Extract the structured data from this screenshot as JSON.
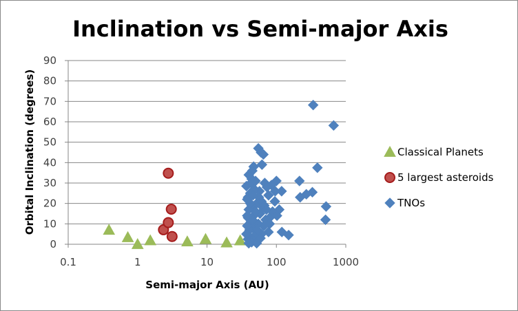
{
  "chart_data": {
    "type": "scatter",
    "title": "Inclination vs Semi-major Axis",
    "xlabel": "Semi-major Axis (AU)",
    "ylabel": "Orbital Inclination (degrees)",
    "xscale": "log",
    "xlim": [
      0.1,
      1000
    ],
    "ylim": [
      0,
      90
    ],
    "x_ticks": [
      "0.1",
      "1",
      "10",
      "100",
      "1000"
    ],
    "y_ticks": [
      "0",
      "10",
      "20",
      "30",
      "40",
      "50",
      "60",
      "70",
      "80",
      "90"
    ],
    "grid": "horizontal",
    "legend_position": "right",
    "series": [
      {
        "name": "Classical Planets",
        "marker": "triangle",
        "color": "#9BBB59",
        "points": [
          [
            0.387,
            7.0
          ],
          [
            0.723,
            3.4
          ],
          [
            1.0,
            0.0
          ],
          [
            1.524,
            1.85
          ],
          [
            5.2,
            1.3
          ],
          [
            9.54,
            2.5
          ],
          [
            19.2,
            0.8
          ],
          [
            30.1,
            1.8
          ]
        ]
      },
      {
        "name": "5 largest asteroids",
        "marker": "circle",
        "color": "#C0504D",
        "points": [
          [
            2.77,
            34.8
          ],
          [
            2.36,
            7.1
          ],
          [
            2.77,
            10.6
          ],
          [
            3.14,
            3.8
          ],
          [
            3.06,
            17.2
          ]
        ]
      },
      {
        "name": "TNOs",
        "marker": "diamond",
        "color": "#4F81BD",
        "points": [
          [
            339,
            68.2
          ],
          [
            668,
            58.2
          ],
          [
            55,
            47
          ],
          [
            60,
            45
          ],
          [
            65,
            44
          ],
          [
            62,
            39
          ],
          [
            47,
            38
          ],
          [
            45,
            36
          ],
          [
            40,
            34
          ],
          [
            390,
            37.5
          ],
          [
            215,
            31
          ],
          [
            100,
            31
          ],
          [
            85,
            29
          ],
          [
            68,
            30
          ],
          [
            50,
            31
          ],
          [
            44,
            32
          ],
          [
            37,
            28.5
          ],
          [
            73,
            28
          ],
          [
            119,
            26
          ],
          [
            330,
            25.5
          ],
          [
            270,
            24.5
          ],
          [
            220,
            23
          ],
          [
            96,
            26
          ],
          [
            77,
            24
          ],
          [
            57,
            26
          ],
          [
            42,
            25
          ],
          [
            39,
            23
          ],
          [
            95,
            21
          ],
          [
            520,
            18.5
          ],
          [
            110,
            17
          ],
          [
            88,
            16
          ],
          [
            64,
            18
          ],
          [
            52,
            20
          ],
          [
            44,
            19
          ],
          [
            40,
            17
          ],
          [
            38,
            22
          ],
          [
            102,
            14
          ],
          [
            80,
            13
          ],
          [
            70,
            12
          ],
          [
            58,
            15
          ],
          [
            47,
            14
          ],
          [
            43,
            11
          ],
          [
            39,
            13
          ],
          [
            510,
            12
          ],
          [
            80,
            10
          ],
          [
            66,
            9
          ],
          [
            55,
            10
          ],
          [
            46,
            8
          ],
          [
            41,
            7
          ],
          [
            38,
            9
          ],
          [
            120,
            6
          ],
          [
            150,
            4.5
          ],
          [
            77,
            6
          ],
          [
            61,
            5
          ],
          [
            48,
            4
          ],
          [
            42,
            3
          ],
          [
            39,
            2.5
          ],
          [
            37,
            5
          ],
          [
            46,
            2
          ],
          [
            44,
            1
          ],
          [
            52,
            0.5
          ],
          [
            40,
            0.5
          ],
          [
            43,
            30
          ],
          [
            48,
            27
          ],
          [
            56,
            23
          ],
          [
            61,
            21
          ],
          [
            67,
            19
          ],
          [
            72,
            17
          ],
          [
            50,
            16
          ],
          [
            45,
            12
          ],
          [
            53,
            7
          ],
          [
            59,
            3
          ],
          [
            38,
            14
          ],
          [
            42,
            20
          ],
          [
            46,
            24
          ]
        ]
      }
    ]
  }
}
